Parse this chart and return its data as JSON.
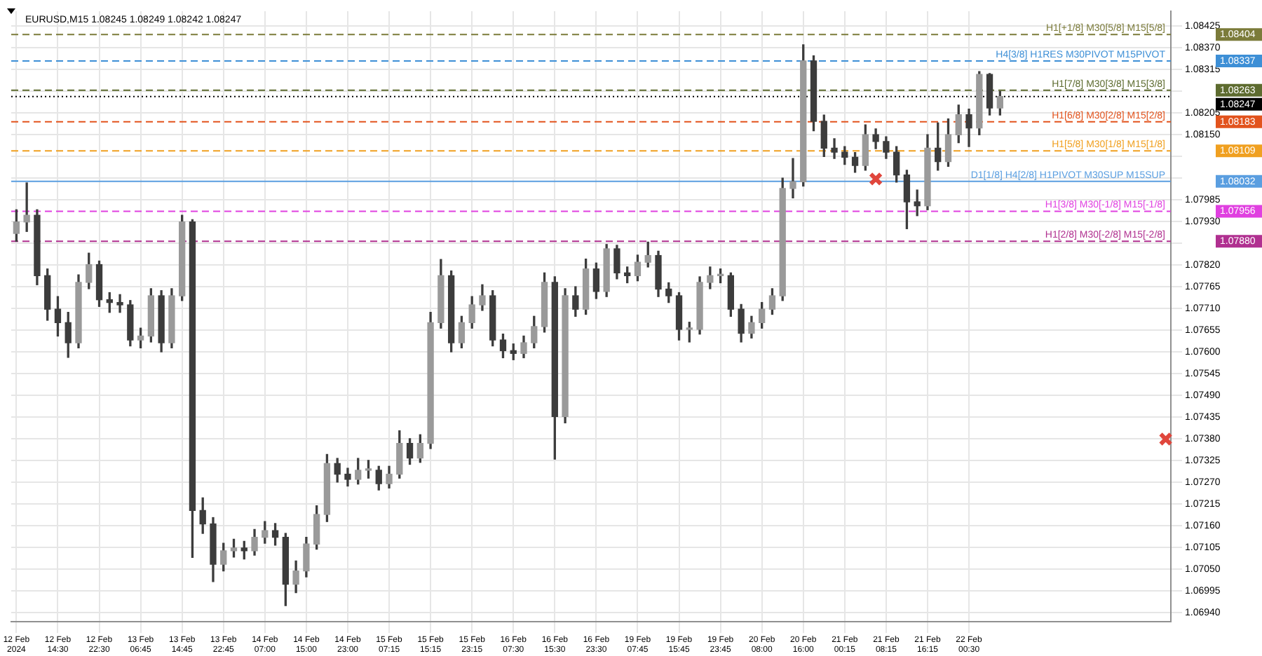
{
  "chart_data": {
    "type": "candlestick",
    "title": "EURUSD,M15 1.08245 1.08249 1.08242 1.08247",
    "color": "#3c3c3c",
    "grid": true,
    "categories": [
      "12 Feb 2024",
      null,
      null,
      null,
      "12 Feb 14:30",
      null,
      null,
      null,
      "12 Feb 22:30",
      null,
      null,
      null,
      "13 Feb 06:45",
      null,
      null,
      null,
      "13 Feb 14:45",
      null,
      null,
      null,
      "13 Feb 22:45",
      null,
      null,
      null,
      "14 Feb 07:00",
      null,
      null,
      null,
      "14 Feb 15:00",
      null,
      null,
      null,
      "14 Feb 23:00",
      null,
      null,
      null,
      "15 Feb 07:15",
      null,
      null,
      null,
      "15 Feb 15:15",
      null,
      null,
      null,
      "15 Feb 23:15",
      null,
      null,
      null,
      "16 Feb 07:30",
      null,
      null,
      null,
      "16 Feb 15:30",
      null,
      null,
      null,
      "16 Feb 23:30",
      null,
      null,
      null,
      "19 Feb 07:45",
      null,
      null,
      null,
      "19 Feb 15:45",
      null,
      null,
      null,
      "19 Feb 23:45",
      null,
      null,
      null,
      "20 Feb 08:00",
      null,
      null,
      null,
      "20 Feb 16:00",
      null,
      null,
      null,
      "21 Feb 00:15",
      null,
      null,
      null,
      "21 Feb 08:15",
      null,
      null,
      null,
      "21 Feb 16:15",
      null,
      null,
      null,
      "22 Feb 00:30",
      null,
      null,
      null,
      null,
      null,
      null,
      null,
      null,
      null,
      null,
      null,
      null,
      null,
      null,
      null,
      null,
      null,
      null,
      null
    ],
    "ohlc": [
      [
        1.079,
        1.0796,
        1.0788,
        1.07929
      ],
      [
        1.07929,
        1.08028,
        1.07905,
        1.07946
      ],
      [
        1.07946,
        1.0796,
        1.0777,
        1.07793
      ],
      [
        1.07793,
        1.0781,
        1.0768,
        1.07708
      ],
      [
        1.07708,
        1.0774,
        1.0764,
        1.07674
      ],
      [
        1.07674,
        1.077,
        1.07586,
        1.07623
      ],
      [
        1.07623,
        1.07795,
        1.0761,
        1.07776
      ],
      [
        1.07776,
        1.0785,
        1.0776,
        1.07821
      ],
      [
        1.07821,
        1.0783,
        1.07715,
        1.07732
      ],
      [
        1.07732,
        1.0775,
        1.077,
        1.07725
      ],
      [
        1.07725,
        1.07745,
        1.077,
        1.07719
      ],
      [
        1.07719,
        1.0773,
        1.07615,
        1.0763
      ],
      [
        1.0763,
        1.0766,
        1.0761,
        1.0764
      ],
      [
        1.0764,
        1.0776,
        1.07625,
        1.07742
      ],
      [
        1.07742,
        1.07755,
        1.076,
        1.07623
      ],
      [
        1.07623,
        1.0776,
        1.0761,
        1.07742
      ],
      [
        1.07742,
        1.07946,
        1.0773,
        1.07929
      ],
      [
        1.07929,
        1.07935,
        1.07079,
        1.07198
      ],
      [
        1.07198,
        1.0723,
        1.0714,
        1.07164
      ],
      [
        1.07164,
        1.0718,
        1.07018,
        1.07062
      ],
      [
        1.07062,
        1.07115,
        1.07045,
        1.07096
      ],
      [
        1.07096,
        1.07125,
        1.0708,
        1.07103
      ],
      [
        1.07103,
        1.0712,
        1.07075,
        1.07096
      ],
      [
        1.07096,
        1.0715,
        1.07085,
        1.0713
      ],
      [
        1.0713,
        1.0717,
        1.07115,
        1.07147
      ],
      [
        1.07147,
        1.07165,
        1.0711,
        1.0713
      ],
      [
        1.0713,
        1.0714,
        1.06957,
        1.07011
      ],
      [
        1.07011,
        1.0707,
        1.0699,
        1.07045
      ],
      [
        1.07045,
        1.0713,
        1.0703,
        1.07113
      ],
      [
        1.07113,
        1.0721,
        1.071,
        1.07188
      ],
      [
        1.07188,
        1.0734,
        1.0717,
        1.07317
      ],
      [
        1.07317,
        1.0733,
        1.0727,
        1.0729
      ],
      [
        1.0729,
        1.07305,
        1.0726,
        1.07277
      ],
      [
        1.07277,
        1.0733,
        1.07265,
        1.073
      ],
      [
        1.073,
        1.07325,
        1.0728,
        1.073
      ],
      [
        1.073,
        1.0731,
        1.0725,
        1.07266
      ],
      [
        1.07266,
        1.0731,
        1.07255,
        1.0729
      ],
      [
        1.0729,
        1.074,
        1.0728,
        1.07368
      ],
      [
        1.07368,
        1.0738,
        1.07315,
        1.07331
      ],
      [
        1.07331,
        1.0739,
        1.0732,
        1.07368
      ],
      [
        1.07368,
        1.077,
        1.07355,
        1.07674
      ],
      [
        1.07674,
        1.07834,
        1.0766,
        1.07793
      ],
      [
        1.07793,
        1.07805,
        1.076,
        1.07623
      ],
      [
        1.07623,
        1.0769,
        1.0761,
        1.07674
      ],
      [
        1.07674,
        1.0774,
        1.0766,
        1.07719
      ],
      [
        1.07719,
        1.0777,
        1.07705,
        1.07742
      ],
      [
        1.07742,
        1.07755,
        1.07615,
        1.0763
      ],
      [
        1.0763,
        1.07645,
        1.07585,
        1.07603
      ],
      [
        1.07603,
        1.0762,
        1.0758,
        1.07596
      ],
      [
        1.07596,
        1.0764,
        1.07585,
        1.07623
      ],
      [
        1.07623,
        1.0769,
        1.0761,
        1.07664
      ],
      [
        1.07664,
        1.078,
        1.0765,
        1.07776
      ],
      [
        1.07776,
        1.0779,
        1.07328,
        1.07436
      ],
      [
        1.07436,
        1.0776,
        1.0742,
        1.07742
      ],
      [
        1.07742,
        1.07765,
        1.0769,
        1.07708
      ],
      [
        1.07708,
        1.07835,
        1.07695,
        1.0781
      ],
      [
        1.0781,
        1.07825,
        1.07735,
        1.07753
      ],
      [
        1.07753,
        1.07872,
        1.0774,
        1.07861
      ],
      [
        1.07861,
        1.0787,
        1.07785,
        1.078
      ],
      [
        1.078,
        1.07815,
        1.07775,
        1.07793
      ],
      [
        1.07793,
        1.07845,
        1.0778,
        1.07827
      ],
      [
        1.07827,
        1.07878,
        1.07815,
        1.07844
      ],
      [
        1.07844,
        1.07855,
        1.0774,
        1.07759
      ],
      [
        1.07759,
        1.07775,
        1.07725,
        1.07742
      ],
      [
        1.07742,
        1.0775,
        1.0763,
        1.07657
      ],
      [
        1.07657,
        1.07675,
        1.07625,
        1.07657
      ],
      [
        1.07657,
        1.0779,
        1.07645,
        1.07776
      ],
      [
        1.07776,
        1.07815,
        1.0776,
        1.07793
      ],
      [
        1.07793,
        1.0781,
        1.07775,
        1.07793
      ],
      [
        1.07793,
        1.078,
        1.0769,
        1.07708
      ],
      [
        1.07708,
        1.0772,
        1.07625,
        1.07647
      ],
      [
        1.07647,
        1.0769,
        1.07635,
        1.07674
      ],
      [
        1.07674,
        1.07725,
        1.0766,
        1.07708
      ],
      [
        1.07708,
        1.0776,
        1.07695,
        1.07742
      ],
      [
        1.07742,
        1.0804,
        1.0773,
        1.08014
      ],
      [
        1.08014,
        1.0809,
        1.0799,
        1.08031
      ],
      [
        1.08031,
        1.08378,
        1.0802,
        1.08337
      ],
      [
        1.08337,
        1.0835,
        1.0816,
        1.08184
      ],
      [
        1.08184,
        1.082,
        1.08095,
        1.08116
      ],
      [
        1.08116,
        1.0814,
        1.0809,
        1.08106
      ],
      [
        1.08106,
        1.0812,
        1.08075,
        1.08093
      ],
      [
        1.08093,
        1.08105,
        1.08055,
        1.08072
      ],
      [
        1.08072,
        1.08175,
        1.0806,
        1.0815
      ],
      [
        1.0815,
        1.08165,
        1.08115,
        1.08133
      ],
      [
        1.08133,
        1.08145,
        1.0809,
        1.08106
      ],
      [
        1.08106,
        1.0812,
        1.0803,
        1.08048
      ],
      [
        1.08048,
        1.0806,
        1.07912,
        1.0798
      ],
      [
        1.0798,
        1.0801,
        1.07945,
        1.0797
      ],
      [
        1.0797,
        1.0815,
        1.0796,
        1.08116
      ],
      [
        1.08116,
        1.0818,
        1.0806,
        1.08082
      ],
      [
        1.08082,
        1.0819,
        1.0807,
        1.0815
      ],
      [
        1.0815,
        1.08225,
        1.0813,
        1.08201
      ],
      [
        1.08201,
        1.08215,
        1.0812,
        1.08167
      ],
      [
        1.08167,
        1.0831,
        1.0815,
        1.08303
      ],
      [
        1.08303,
        1.08305,
        1.082,
        1.08218
      ],
      [
        1.08218,
        1.0826,
        1.082,
        1.08247
      ],
      null,
      null,
      null,
      null,
      null,
      null,
      null,
      null,
      null,
      null,
      null,
      null,
      null,
      null,
      null,
      null
    ],
    "series": [
      {
        "type": "scatter",
        "color": "#e0463c",
        "marker": "cross",
        "values": [
          null,
          null,
          null,
          null,
          null,
          null,
          null,
          null,
          null,
          null,
          null,
          null,
          null,
          null,
          null,
          null,
          null,
          null,
          null,
          null,
          null,
          null,
          null,
          null,
          null,
          null,
          null,
          null,
          null,
          null,
          null,
          null,
          null,
          null,
          null,
          null,
          null,
          null,
          null,
          null,
          null,
          null,
          null,
          null,
          null,
          null,
          null,
          null,
          null,
          null,
          null,
          null,
          null,
          null,
          null,
          null,
          null,
          null,
          null,
          null,
          null,
          null,
          null,
          null,
          null,
          null,
          null,
          null,
          null,
          null,
          null,
          null,
          null,
          null,
          null,
          null,
          null,
          null,
          null,
          null,
          null,
          null,
          null,
          1.08038,
          null,
          null,
          null,
          null,
          null,
          null,
          null,
          null,
          null,
          null,
          null,
          null,
          null,
          null,
          null,
          null,
          null,
          null,
          null,
          null,
          null,
          null,
          null,
          null,
          null,
          null,
          null,
          1.07379
        ]
      }
    ],
    "ylim": [
      1.06916,
      1.08463
    ],
    "yticks": [
      {
        "value": 1.0694,
        "label": "1.06940"
      },
      {
        "value": 1.06995,
        "label": "1.06995"
      },
      {
        "value": 1.0705,
        "label": "1.07050"
      },
      {
        "value": 1.07105,
        "label": "1.07105"
      },
      {
        "value": 1.0716,
        "label": "1.07160"
      },
      {
        "value": 1.07215,
        "label": "1.07215"
      },
      {
        "value": 1.0727,
        "label": "1.07270"
      },
      {
        "value": 1.07325,
        "label": "1.07325"
      },
      {
        "value": 1.0738,
        "label": "1.07380"
      },
      {
        "value": 1.07435,
        "label": "1.07435"
      },
      {
        "value": 1.0749,
        "label": "1.07490"
      },
      {
        "value": 1.07545,
        "label": "1.07545"
      },
      {
        "value": 1.076,
        "label": "1.07600"
      },
      {
        "value": 1.07655,
        "label": "1.07655"
      },
      {
        "value": 1.0771,
        "label": "1.07710"
      },
      {
        "value": 1.07765,
        "label": "1.07765"
      },
      {
        "value": 1.0782,
        "label": "1.07820"
      },
      {
        "value": 1.07875,
        "label": null
      },
      {
        "value": 1.0793,
        "label": "1.07930"
      },
      {
        "value": 1.07985,
        "label": "1.07985"
      },
      {
        "value": 1.0804,
        "label": null
      },
      {
        "value": 1.08095,
        "label": null
      },
      {
        "value": 1.0815,
        "label": "1.08150"
      },
      {
        "value": 1.08205,
        "label": "1.08205"
      },
      {
        "value": 1.0826,
        "label": null
      },
      {
        "value": 1.08315,
        "label": "1.08315"
      },
      {
        "value": 1.0837,
        "label": "1.08370"
      },
      {
        "value": 1.08425,
        "label": "1.08425"
      }
    ],
    "ref_lines": [
      {
        "axis": "y",
        "value": 1.08404,
        "label": "H1[+1/8] M30[5/8] M15[5/8]",
        "color": "#7b7b3a",
        "line_style": "dashed"
      },
      {
        "axis": "y",
        "value": 1.08337,
        "label": "H4[3/8] H1RES M30PIVOT M15PIVOT",
        "color": "#3d8fd6",
        "line_style": "dashed"
      },
      {
        "axis": "y",
        "value": 1.08263,
        "label": "H1[7/8] M30[3/8] M15[3/8]",
        "color": "#5d6b2f",
        "line_style": "dashed"
      },
      {
        "axis": "y",
        "value": 1.08247,
        "color": "#000000",
        "line_style": "dotted"
      },
      {
        "axis": "y",
        "value": 1.08183,
        "label": "H1[6/8] M30[2/8] M15[2/8]",
        "color": "#e2531d",
        "line_style": "dashed"
      },
      {
        "axis": "y",
        "value": 1.08109,
        "label": "H1[5/8] M30[1/8] M15[1/8]",
        "color": "#f0a020",
        "line_style": "dashed"
      },
      {
        "axis": "y",
        "value": 1.08032,
        "label": "D1[1/8] H4[2/8] H1PIVOT M30SUP M15SUP",
        "color": "#5a9ee0",
        "line_style": "solid"
      },
      {
        "axis": "y",
        "value": 1.07956,
        "label": "H1[3/8] M30[-1/8] M15[-1/8]",
        "color": "#e040e0",
        "line_style": "dashed"
      },
      {
        "axis": "y",
        "value": 1.0788,
        "label": "H1[2/8] M30[-2/8] M15[-2/8]",
        "color": "#b03090",
        "line_style": "dashed"
      }
    ],
    "annotations": [
      "1.08404",
      "1.08337",
      "1.08263",
      "1.08247",
      "1.08183",
      "1.08109",
      "1.08032",
      "1.07956",
      "1.07880"
    ],
    "colors": [
      "#9a9a9a",
      "#9a9a9a",
      "#3c3c3c",
      "#3c3c3c",
      "#3c3c3c",
      "#3c3c3c",
      "#9a9a9a",
      "#9a9a9a",
      "#3c3c3c",
      "#3c3c3c",
      "#3c3c3c",
      "#3c3c3c",
      "#9a9a9a",
      "#9a9a9a",
      "#3c3c3c",
      "#9a9a9a",
      "#9a9a9a",
      "#3c3c3c",
      "#3c3c3c",
      "#3c3c3c",
      "#9a9a9a",
      "#9a9a9a",
      "#3c3c3c",
      "#9a9a9a",
      "#9a9a9a",
      "#3c3c3c",
      "#3c3c3c",
      "#9a9a9a",
      "#9a9a9a",
      "#9a9a9a",
      "#9a9a9a",
      "#3c3c3c",
      "#3c3c3c",
      "#9a9a9a",
      "#9a9a9a",
      "#3c3c3c",
      "#9a9a9a",
      "#9a9a9a",
      "#3c3c3c",
      "#9a9a9a",
      "#9a9a9a",
      "#9a9a9a",
      "#3c3c3c",
      "#9a9a9a",
      "#9a9a9a",
      "#9a9a9a",
      "#3c3c3c",
      "#3c3c3c",
      "#3c3c3c",
      "#9a9a9a",
      "#9a9a9a",
      "#9a9a9a",
      "#3c3c3c",
      "#9a9a9a",
      "#3c3c3c",
      "#9a9a9a",
      "#3c3c3c",
      "#9a9a9a",
      "#3c3c3c",
      "#3c3c3c",
      "#9a9a9a",
      "#9a9a9a",
      "#3c3c3c",
      "#3c3c3c",
      "#3c3c3c",
      "#9a9a9a",
      "#9a9a9a",
      "#9a9a9a",
      "#9a9a9a",
      "#3c3c3c",
      "#3c3c3c",
      "#9a9a9a",
      "#9a9a9a",
      "#9a9a9a",
      "#9a9a9a",
      "#9a9a9a",
      "#9a9a9a",
      "#3c3c3c",
      "#3c3c3c",
      "#3c3c3c",
      "#3c3c3c",
      "#3c3c3c",
      "#9a9a9a",
      "#3c3c3c",
      "#3c3c3c",
      "#3c3c3c",
      "#3c3c3c",
      "#3c3c3c",
      "#9a9a9a",
      "#3c3c3c",
      "#9a9a9a",
      "#9a9a9a",
      "#3c3c3c",
      "#9a9a9a",
      "#3c3c3c",
      "#9a9a9a",
      null,
      null,
      null,
      null,
      null,
      null,
      null,
      null,
      null,
      null,
      null,
      null,
      null,
      null,
      null,
      null
    ]
  }
}
